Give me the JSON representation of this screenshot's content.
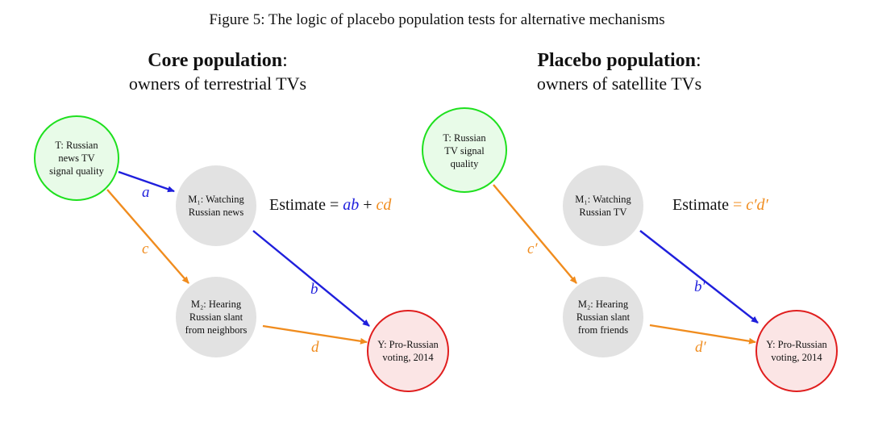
{
  "caption": "Figure 5: The logic of placebo population tests for alternative mechanisms",
  "colors": {
    "blue": "#1f1fdc",
    "orange": "#f08c1e",
    "green_stroke": "#1ee01e",
    "green_fill": "#e8fbe8",
    "red_stroke": "#e01e1e",
    "red_fill": "#fbe5e5",
    "gray_fill": "#e2e2e2"
  },
  "left": {
    "title_bold": "Core population",
    "title_colon": ":",
    "subtitle": "owners of terrestrial TVs",
    "nodes": {
      "T": "T: Russian news TV signal quality",
      "M1": "M₁: Watching Russian news",
      "M2": "M₂: Hearing Russian slant from neighbors",
      "Y": "Y: Pro-Russian voting, 2014"
    },
    "edges": {
      "a": "a",
      "b": "b",
      "c": "c",
      "d": "d"
    },
    "estimate": {
      "label": "Estimate",
      "eq": "=",
      "term1": "ab",
      "plus": "+",
      "term2": "cd"
    }
  },
  "right": {
    "title_bold": "Placebo population",
    "title_colon": ":",
    "subtitle": "owners of satellite TVs",
    "nodes": {
      "T": "T: Russian TV signal quality",
      "M1": "M₁: Watching Russian TV",
      "M2": "M₂: Hearing Russian slant from friends",
      "Y": "Y: Pro-Russian voting, 2014"
    },
    "edges": {
      "b": "b′",
      "c": "c′",
      "d": "d′"
    },
    "estimate": {
      "label": "Estimate",
      "eq": "=",
      "term": "c′d′"
    }
  }
}
